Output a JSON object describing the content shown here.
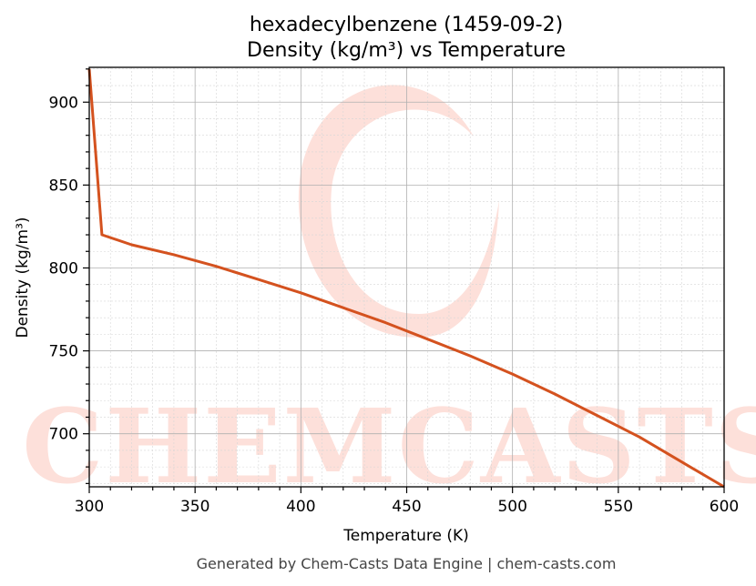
{
  "chart_data": {
    "type": "line",
    "title": "hexadecylbenzene (1459-09-2)",
    "subtitle": "Density (kg/m³) vs Temperature",
    "xlabel": "Temperature (K)",
    "ylabel": "Density (kg/m³)",
    "xlim": [
      300,
      600
    ],
    "ylim": [
      668,
      921
    ],
    "xticks": [
      300,
      350,
      400,
      450,
      500,
      550,
      600
    ],
    "yticks": [
      700,
      750,
      800,
      850,
      900
    ],
    "grid": true,
    "series": [
      {
        "color": "#d4521f",
        "x": [
          300,
          306,
          320,
          340,
          360,
          380,
          400,
          420,
          440,
          460,
          480,
          500,
          520,
          540,
          560,
          580,
          600
        ],
        "y": [
          920,
          820,
          814,
          808,
          801,
          793,
          785,
          776,
          767,
          757,
          747,
          736,
          724,
          711,
          698,
          683,
          668
        ]
      }
    ],
    "watermark": "CHEMCASTS"
  },
  "footer": "Generated by Chem-Casts Data Engine | chem-casts.com"
}
